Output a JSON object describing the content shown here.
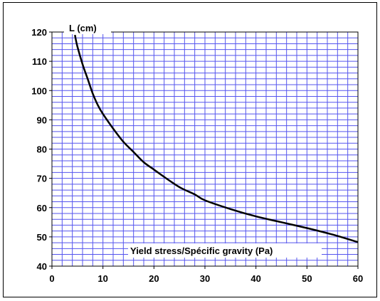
{
  "chart_data": {
    "type": "line",
    "title": "",
    "xlabel": "Yield stress/Spécific gravity (Pa)",
    "ylabel": "L (cm)",
    "xlim": [
      0,
      60
    ],
    "ylim": [
      40,
      120
    ],
    "x_ticks": [
      0,
      10,
      20,
      30,
      40,
      50,
      60
    ],
    "y_ticks": [
      40,
      50,
      60,
      70,
      80,
      90,
      100,
      110,
      120
    ],
    "grid": true,
    "minor_grid_x_step": 2,
    "minor_grid_y_step": 2,
    "grid_color": "#5555ee",
    "line_color": "#000000",
    "series": [
      {
        "x": [
          4.5,
          5,
          6,
          7,
          8,
          9,
          10,
          12,
          14,
          16,
          18,
          20,
          22,
          25,
          28,
          30,
          35,
          40,
          45,
          50,
          55,
          60
        ],
        "y": [
          119,
          115,
          109,
          104,
          99,
          95,
          92,
          87,
          82.5,
          79,
          75.5,
          73,
          70.5,
          67,
          64.5,
          62.5,
          59.5,
          57,
          55,
          53,
          50.8,
          48.2
        ]
      }
    ]
  }
}
